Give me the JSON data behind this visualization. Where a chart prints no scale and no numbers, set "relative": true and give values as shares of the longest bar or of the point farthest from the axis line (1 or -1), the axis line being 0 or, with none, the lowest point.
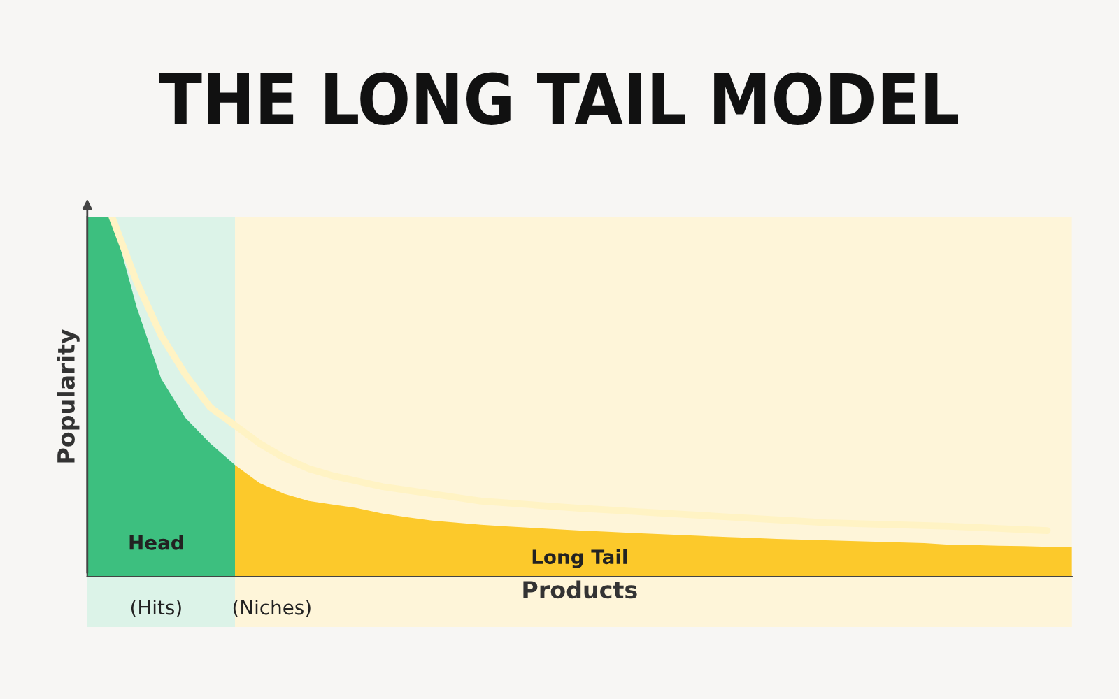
{
  "chart_data": {
    "type": "area",
    "title": "THE LONG TAIL MODEL",
    "xlabel": "Products",
    "ylabel": "Popularity",
    "relative": true,
    "categories": [
      null,
      null,
      null,
      null,
      null,
      null,
      null,
      null,
      null,
      null,
      null,
      null,
      null,
      null,
      null,
      null,
      null,
      null,
      null,
      null,
      null,
      null,
      null,
      null,
      null,
      null,
      null,
      null,
      null,
      null,
      null,
      null,
      null,
      null,
      null,
      null,
      null,
      null,
      null,
      null,
      null
    ],
    "series": [
      {
        "color": "#3dbf7f",
        "values": [
          1.0,
          1.0,
          0.75,
          0.55,
          0.44,
          0.37,
          0.31,
          null,
          null,
          null,
          null,
          null,
          null,
          null,
          null,
          null,
          null,
          null,
          null,
          null,
          null,
          null,
          null,
          null,
          null,
          null,
          null,
          null,
          null,
          null,
          null,
          null,
          null,
          null,
          null,
          null,
          null,
          null,
          null,
          null,
          null
        ]
      },
      {
        "color": "#fcc92b",
        "values": [
          null,
          null,
          null,
          null,
          null,
          null,
          0.31,
          0.26,
          0.23,
          0.21,
          0.2,
          0.19,
          0.175,
          0.165,
          0.156,
          0.15,
          0.144,
          0.14,
          0.136,
          0.132,
          0.128,
          0.125,
          0.122,
          0.119,
          0.116,
          0.113,
          0.11,
          0.108,
          0.105,
          0.103,
          0.101,
          0.099,
          0.097,
          0.095,
          0.093,
          0.089,
          0.088,
          0.086,
          0.085,
          0.083,
          0.082
        ]
      },
      {
        "type": "line",
        "color": "#fff3c4",
        "values": [
          null,
          1.0,
          0.82,
          0.67,
          0.56,
          0.47,
          0.42,
          0.37,
          0.33,
          0.3,
          0.28,
          0.265,
          0.25,
          0.24,
          0.23,
          0.22,
          0.21,
          0.205,
          0.2,
          0.195,
          0.19,
          0.186,
          0.182,
          0.178,
          0.174,
          0.17,
          0.166,
          0.162,
          0.158,
          0.154,
          0.15,
          0.148,
          0.146,
          0.144,
          0.142,
          0.14,
          0.137,
          0.134,
          0.131,
          0.128,
          null
        ]
      }
    ],
    "annotations": [
      "Head",
      "Long Tail",
      "(Hits)",
      "(Niches)"
    ],
    "legend": false
  }
}
